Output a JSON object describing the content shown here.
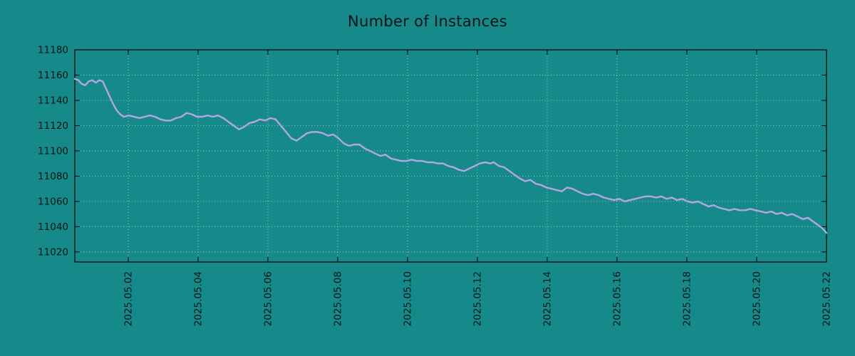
{
  "title": "Number of Instances",
  "colors": {
    "background": "#168a8a",
    "line": "#b3a6e4",
    "grid": "#d8dede",
    "axis": "#000000",
    "text": "#051414"
  },
  "chart_data": {
    "type": "line",
    "title": "Number of Instances",
    "xlabel": "",
    "ylabel": "",
    "legend_position": "none",
    "grid": true,
    "y_range": [
      11012,
      11180
    ],
    "y_ticks": [
      11020,
      11040,
      11060,
      11080,
      11100,
      11120,
      11140,
      11160,
      11180
    ],
    "y_tick_labels": [
      "11020",
      "11040",
      "11060",
      "11080",
      "11100",
      "11120",
      "11140",
      "11160",
      "11180"
    ],
    "x_range_days": [
      0,
      21.53
    ],
    "x_tick_positions_days": [
      1.53,
      3.53,
      5.53,
      7.53,
      9.53,
      11.53,
      13.53,
      15.53,
      17.53,
      19.53,
      21.53
    ],
    "x_tick_labels": [
      "2025.05.02",
      "2025.05.04",
      "2025.05.06",
      "2025.05.08",
      "2025.05.10",
      "2025.05.12",
      "2025.05.14",
      "2025.05.16",
      "2025.05.18",
      "2025.05.20",
      "2025.05.22"
    ],
    "points": [
      [
        0,
        11157
      ],
      [
        0.1,
        11156
      ],
      [
        0.2,
        11153
      ],
      [
        0.3,
        11152
      ],
      [
        0.4,
        11155
      ],
      [
        0.5,
        11156
      ],
      [
        0.6,
        11154
      ],
      [
        0.7,
        11156
      ],
      [
        0.8,
        11155
      ],
      [
        0.9,
        11149
      ],
      [
        1.0,
        11143
      ],
      [
        1.1,
        11137
      ],
      [
        1.2,
        11132
      ],
      [
        1.3,
        11129
      ],
      [
        1.4,
        11127
      ],
      [
        1.55,
        11128
      ],
      [
        1.7,
        11127
      ],
      [
        1.85,
        11126
      ],
      [
        2.0,
        11127
      ],
      [
        2.15,
        11128
      ],
      [
        2.3,
        11127
      ],
      [
        2.45,
        11125
      ],
      [
        2.6,
        11124
      ],
      [
        2.75,
        11124
      ],
      [
        2.9,
        11126
      ],
      [
        3.05,
        11127
      ],
      [
        3.2,
        11130
      ],
      [
        3.35,
        11129
      ],
      [
        3.5,
        11127
      ],
      [
        3.65,
        11127
      ],
      [
        3.8,
        11128
      ],
      [
        3.95,
        11127
      ],
      [
        4.1,
        11128
      ],
      [
        4.25,
        11126
      ],
      [
        4.4,
        11123
      ],
      [
        4.55,
        11120
      ],
      [
        4.7,
        11117
      ],
      [
        4.85,
        11119
      ],
      [
        5.0,
        11122
      ],
      [
        5.15,
        11123
      ],
      [
        5.3,
        11125
      ],
      [
        5.45,
        11124
      ],
      [
        5.6,
        11126
      ],
      [
        5.75,
        11125
      ],
      [
        5.9,
        11120
      ],
      [
        6.05,
        11115
      ],
      [
        6.2,
        11110
      ],
      [
        6.35,
        11108
      ],
      [
        6.5,
        11111
      ],
      [
        6.65,
        11114
      ],
      [
        6.8,
        11115
      ],
      [
        6.95,
        11115
      ],
      [
        7.1,
        11114
      ],
      [
        7.25,
        11112
      ],
      [
        7.4,
        11113
      ],
      [
        7.55,
        11110
      ],
      [
        7.7,
        11106
      ],
      [
        7.85,
        11104
      ],
      [
        8.0,
        11105
      ],
      [
        8.15,
        11105
      ],
      [
        8.3,
        11102
      ],
      [
        8.45,
        11100
      ],
      [
        8.6,
        11098
      ],
      [
        8.75,
        11096
      ],
      [
        8.9,
        11097
      ],
      [
        9.05,
        11094
      ],
      [
        9.2,
        11093
      ],
      [
        9.35,
        11092
      ],
      [
        9.5,
        11092
      ],
      [
        9.65,
        11093
      ],
      [
        9.8,
        11092
      ],
      [
        9.95,
        11092
      ],
      [
        10.1,
        11091
      ],
      [
        10.25,
        11091
      ],
      [
        10.4,
        11090
      ],
      [
        10.55,
        11090
      ],
      [
        10.7,
        11088
      ],
      [
        10.85,
        11087
      ],
      [
        11.0,
        11085
      ],
      [
        11.15,
        11084
      ],
      [
        11.3,
        11086
      ],
      [
        11.45,
        11088
      ],
      [
        11.6,
        11090
      ],
      [
        11.75,
        11091
      ],
      [
        11.9,
        11090
      ],
      [
        12.0,
        11091
      ],
      [
        12.15,
        11088
      ],
      [
        12.3,
        11087
      ],
      [
        12.45,
        11084
      ],
      [
        12.6,
        11081
      ],
      [
        12.75,
        11078
      ],
      [
        12.9,
        11076
      ],
      [
        13.05,
        11077
      ],
      [
        13.2,
        11074
      ],
      [
        13.35,
        11073
      ],
      [
        13.5,
        11071
      ],
      [
        13.65,
        11070
      ],
      [
        13.8,
        11069
      ],
      [
        13.95,
        11068
      ],
      [
        14.1,
        11071
      ],
      [
        14.25,
        11070
      ],
      [
        14.4,
        11068
      ],
      [
        14.55,
        11066
      ],
      [
        14.7,
        11065
      ],
      [
        14.85,
        11066
      ],
      [
        15.0,
        11065
      ],
      [
        15.15,
        11063
      ],
      [
        15.3,
        11062
      ],
      [
        15.45,
        11061
      ],
      [
        15.6,
        11062
      ],
      [
        15.75,
        11060
      ],
      [
        15.9,
        11061
      ],
      [
        16.05,
        11062
      ],
      [
        16.2,
        11063
      ],
      [
        16.35,
        11064
      ],
      [
        16.5,
        11064
      ],
      [
        16.65,
        11063
      ],
      [
        16.8,
        11064
      ],
      [
        16.95,
        11062
      ],
      [
        17.1,
        11063
      ],
      [
        17.25,
        11061
      ],
      [
        17.4,
        11062
      ],
      [
        17.55,
        11060
      ],
      [
        17.7,
        11059
      ],
      [
        17.85,
        11060
      ],
      [
        18.0,
        11058
      ],
      [
        18.15,
        11056
      ],
      [
        18.3,
        11057
      ],
      [
        18.45,
        11055
      ],
      [
        18.6,
        11054
      ],
      [
        18.75,
        11053
      ],
      [
        18.9,
        11054
      ],
      [
        19.05,
        11053
      ],
      [
        19.2,
        11053
      ],
      [
        19.35,
        11054
      ],
      [
        19.5,
        11053
      ],
      [
        19.65,
        11052
      ],
      [
        19.8,
        11051
      ],
      [
        19.95,
        11052
      ],
      [
        20.1,
        11050
      ],
      [
        20.25,
        11051
      ],
      [
        20.4,
        11049
      ],
      [
        20.55,
        11050
      ],
      [
        20.7,
        11048
      ],
      [
        20.85,
        11046
      ],
      [
        21.0,
        11047
      ],
      [
        21.1,
        11045
      ],
      [
        21.2,
        11043
      ],
      [
        21.3,
        11041
      ],
      [
        21.4,
        11039
      ],
      [
        21.47,
        11037
      ],
      [
        21.53,
        11035
      ]
    ]
  }
}
